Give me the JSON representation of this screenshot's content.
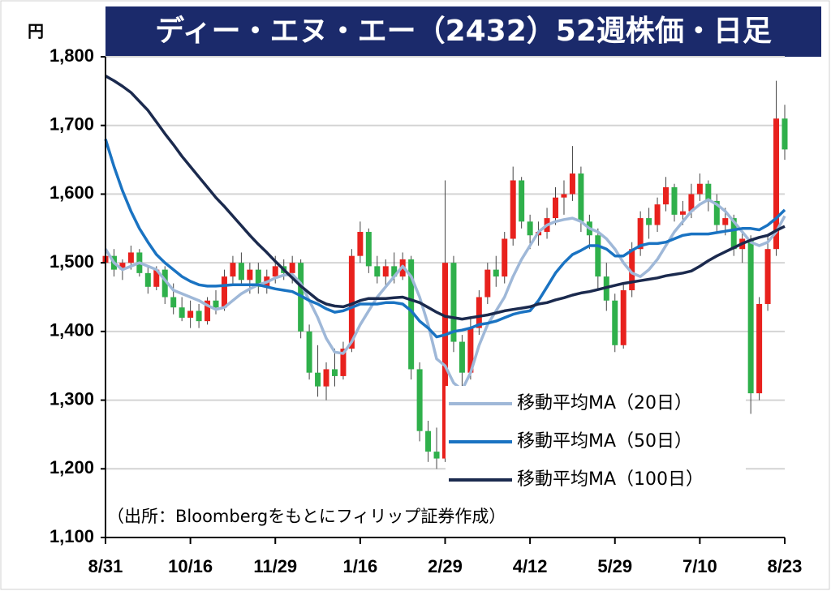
{
  "chart_data": {
    "type": "candlestick",
    "title": "ディー・エヌ・エー（2432）52週株価・日足",
    "y_unit": "円",
    "note": "（出所：Bloombergをもとにフィリップ証券作成）",
    "up_color": "#e8211d",
    "down_color": "#2fb04b",
    "grid": true,
    "legend": "lower right",
    "ylim": [
      1100,
      1800
    ],
    "yticks": [
      {
        "value": 1100,
        "label": "1,100"
      },
      {
        "value": 1200,
        "label": "1,200"
      },
      {
        "value": 1300,
        "label": "1,300"
      },
      {
        "value": 1400,
        "label": "1,400"
      },
      {
        "value": 1500,
        "label": "1,500"
      },
      {
        "value": 1600,
        "label": "1,600"
      },
      {
        "value": 1700,
        "label": "1,700"
      },
      {
        "value": 1800,
        "label": "1,800"
      }
    ],
    "categories": [
      "8/31",
      null,
      null,
      null,
      null,
      null,
      null,
      null,
      null,
      null,
      "10/16",
      null,
      null,
      null,
      null,
      null,
      null,
      null,
      null,
      null,
      "11/29",
      null,
      null,
      null,
      null,
      null,
      null,
      null,
      null,
      null,
      "1/16",
      null,
      null,
      null,
      null,
      null,
      null,
      null,
      null,
      null,
      "2/29",
      null,
      null,
      null,
      null,
      null,
      null,
      null,
      null,
      null,
      "4/12",
      null,
      null,
      null,
      null,
      null,
      null,
      null,
      null,
      null,
      "5/29",
      null,
      null,
      null,
      null,
      null,
      null,
      null,
      null,
      null,
      "7/10",
      null,
      null,
      null,
      null,
      null,
      null,
      null,
      null,
      null,
      "8/23"
    ],
    "candles": [
      [
        1500,
        1520,
        1485,
        1510
      ],
      [
        1510,
        1520,
        1480,
        1490
      ],
      [
        1490,
        1505,
        1475,
        1500
      ],
      [
        1500,
        1525,
        1490,
        1515
      ],
      [
        1515,
        1520,
        1480,
        1485
      ],
      [
        1485,
        1495,
        1455,
        1465
      ],
      [
        1465,
        1495,
        1460,
        1490
      ],
      [
        1490,
        1495,
        1440,
        1450
      ],
      [
        1450,
        1470,
        1425,
        1435
      ],
      [
        1435,
        1450,
        1415,
        1420
      ],
      [
        1420,
        1445,
        1405,
        1430
      ],
      [
        1430,
        1440,
        1405,
        1415
      ],
      [
        1415,
        1450,
        1410,
        1445
      ],
      [
        1445,
        1460,
        1425,
        1435
      ],
      [
        1435,
        1490,
        1430,
        1480
      ],
      [
        1480,
        1510,
        1470,
        1500
      ],
      [
        1500,
        1515,
        1470,
        1475
      ],
      [
        1475,
        1500,
        1455,
        1490
      ],
      [
        1490,
        1500,
        1455,
        1465
      ],
      [
        1465,
        1490,
        1455,
        1480
      ],
      [
        1480,
        1510,
        1470,
        1495
      ],
      [
        1495,
        1505,
        1475,
        1485
      ],
      [
        1485,
        1510,
        1470,
        1500
      ],
      [
        1500,
        1505,
        1390,
        1400
      ],
      [
        1400,
        1410,
        1330,
        1340
      ],
      [
        1340,
        1380,
        1305,
        1320
      ],
      [
        1320,
        1355,
        1300,
        1345
      ],
      [
        1345,
        1375,
        1320,
        1335
      ],
      [
        1335,
        1385,
        1330,
        1375
      ],
      [
        1375,
        1520,
        1370,
        1510
      ],
      [
        1510,
        1560,
        1500,
        1545
      ],
      [
        1545,
        1550,
        1485,
        1495
      ],
      [
        1495,
        1510,
        1470,
        1480
      ],
      [
        1480,
        1505,
        1465,
        1495
      ],
      [
        1495,
        1515,
        1470,
        1480
      ],
      [
        1480,
        1515,
        1475,
        1505
      ],
      [
        1505,
        1510,
        1330,
        1345
      ],
      [
        1345,
        1355,
        1240,
        1255
      ],
      [
        1255,
        1270,
        1210,
        1225
      ],
      [
        1225,
        1260,
        1200,
        1215
      ],
      [
        1215,
        1620,
        1210,
        1500
      ],
      [
        1500,
        1510,
        1370,
        1385
      ],
      [
        1385,
        1395,
        1320,
        1340
      ],
      [
        1340,
        1420,
        1330,
        1405
      ],
      [
        1405,
        1460,
        1395,
        1450
      ],
      [
        1450,
        1500,
        1440,
        1490
      ],
      [
        1490,
        1510,
        1465,
        1480
      ],
      [
        1480,
        1545,
        1470,
        1535
      ],
      [
        1535,
        1640,
        1525,
        1620
      ],
      [
        1620,
        1625,
        1550,
        1560
      ],
      [
        1560,
        1570,
        1520,
        1540
      ],
      [
        1540,
        1560,
        1525,
        1545
      ],
      [
        1545,
        1580,
        1535,
        1565
      ],
      [
        1565,
        1610,
        1555,
        1595
      ],
      [
        1595,
        1620,
        1570,
        1600
      ],
      [
        1600,
        1670,
        1590,
        1630
      ],
      [
        1630,
        1640,
        1545,
        1560
      ],
      [
        1560,
        1570,
        1520,
        1540
      ],
      [
        1540,
        1550,
        1460,
        1480
      ],
      [
        1480,
        1500,
        1430,
        1445
      ],
      [
        1445,
        1455,
        1370,
        1380
      ],
      [
        1380,
        1470,
        1375,
        1460
      ],
      [
        1460,
        1530,
        1450,
        1520
      ],
      [
        1520,
        1575,
        1510,
        1565
      ],
      [
        1565,
        1580,
        1535,
        1555
      ],
      [
        1555,
        1595,
        1545,
        1585
      ],
      [
        1585,
        1625,
        1575,
        1610
      ],
      [
        1610,
        1615,
        1560,
        1570
      ],
      [
        1570,
        1590,
        1555,
        1575
      ],
      [
        1575,
        1615,
        1565,
        1600
      ],
      [
        1600,
        1630,
        1590,
        1615
      ],
      [
        1615,
        1620,
        1575,
        1590
      ],
      [
        1590,
        1600,
        1545,
        1555
      ],
      [
        1555,
        1580,
        1540,
        1565
      ],
      [
        1565,
        1570,
        1510,
        1520
      ],
      [
        1520,
        1545,
        1500,
        1535
      ],
      [
        1535,
        1540,
        1280,
        1310
      ],
      [
        1310,
        1450,
        1300,
        1440
      ],
      [
        1440,
        1540,
        1430,
        1520
      ],
      [
        1520,
        1765,
        1510,
        1710
      ],
      [
        1710,
        1730,
        1650,
        1665
      ]
    ],
    "series": [
      {
        "name": "移動平均MA（20日）",
        "color": "#9fb8d8",
        "values": [
          1520,
          1500,
          1490,
          1495,
          1500,
          1495,
          1490,
          1475,
          1460,
          1455,
          1450,
          1445,
          1438,
          1432,
          1435,
          1445,
          1455,
          1462,
          1468,
          1472,
          1478,
          1482,
          1483,
          1470,
          1445,
          1420,
          1390,
          1370,
          1368,
          1385,
          1410,
          1430,
          1450,
          1465,
          1480,
          1495,
          1480,
          1450,
          1410,
          1360,
          1350,
          1325,
          1315,
          1340,
          1380,
          1410,
          1430,
          1450,
          1480,
          1505,
          1525,
          1545,
          1555,
          1560,
          1563,
          1565,
          1560,
          1550,
          1545,
          1535,
          1520,
          1500,
          1485,
          1480,
          1490,
          1505,
          1525,
          1545,
          1560,
          1575,
          1585,
          1592,
          1585,
          1575,
          1560,
          1545,
          1530,
          1525,
          1530,
          1545,
          1568
        ]
      },
      {
        "name": "移動平均MA（50日）",
        "color": "#1a73c2",
        "values": [
          1680,
          1640,
          1605,
          1575,
          1550,
          1530,
          1512,
          1500,
          1490,
          1480,
          1473,
          1468,
          1466,
          1466,
          1467,
          1468,
          1468,
          1468,
          1468,
          1465,
          1462,
          1460,
          1458,
          1452,
          1445,
          1440,
          1433,
          1428,
          1430,
          1435,
          1440,
          1440,
          1440,
          1442,
          1442,
          1440,
          1430,
          1415,
          1405,
          1392,
          1395,
          1400,
          1402,
          1405,
          1410,
          1412,
          1415,
          1420,
          1425,
          1428,
          1430,
          1445,
          1465,
          1485,
          1500,
          1512,
          1518,
          1525,
          1525,
          1520,
          1510,
          1510,
          1518,
          1525,
          1528,
          1528,
          1530,
          1535,
          1540,
          1542,
          1542,
          1542,
          1544,
          1546,
          1548,
          1550,
          1550,
          1548,
          1555,
          1565,
          1577
        ]
      },
      {
        "name": "移動平均MA（100日）",
        "color": "#1b2a4e",
        "values": [
          1772,
          1765,
          1757,
          1748,
          1735,
          1722,
          1705,
          1688,
          1672,
          1655,
          1640,
          1625,
          1610,
          1595,
          1582,
          1568,
          1554,
          1540,
          1527,
          1515,
          1502,
          1490,
          1478,
          1466,
          1456,
          1446,
          1440,
          1437,
          1436,
          1440,
          1445,
          1448,
          1448,
          1448,
          1449,
          1450,
          1446,
          1442,
          1435,
          1428,
          1422,
          1420,
          1418,
          1420,
          1422,
          1424,
          1427,
          1430,
          1432,
          1434,
          1436,
          1440,
          1442,
          1446,
          1449,
          1453,
          1456,
          1458,
          1461,
          1464,
          1467,
          1470,
          1472,
          1474,
          1476,
          1478,
          1481,
          1483,
          1485,
          1488,
          1495,
          1503,
          1510,
          1516,
          1522,
          1528,
          1533,
          1537,
          1540,
          1547,
          1553
        ]
      }
    ]
  }
}
